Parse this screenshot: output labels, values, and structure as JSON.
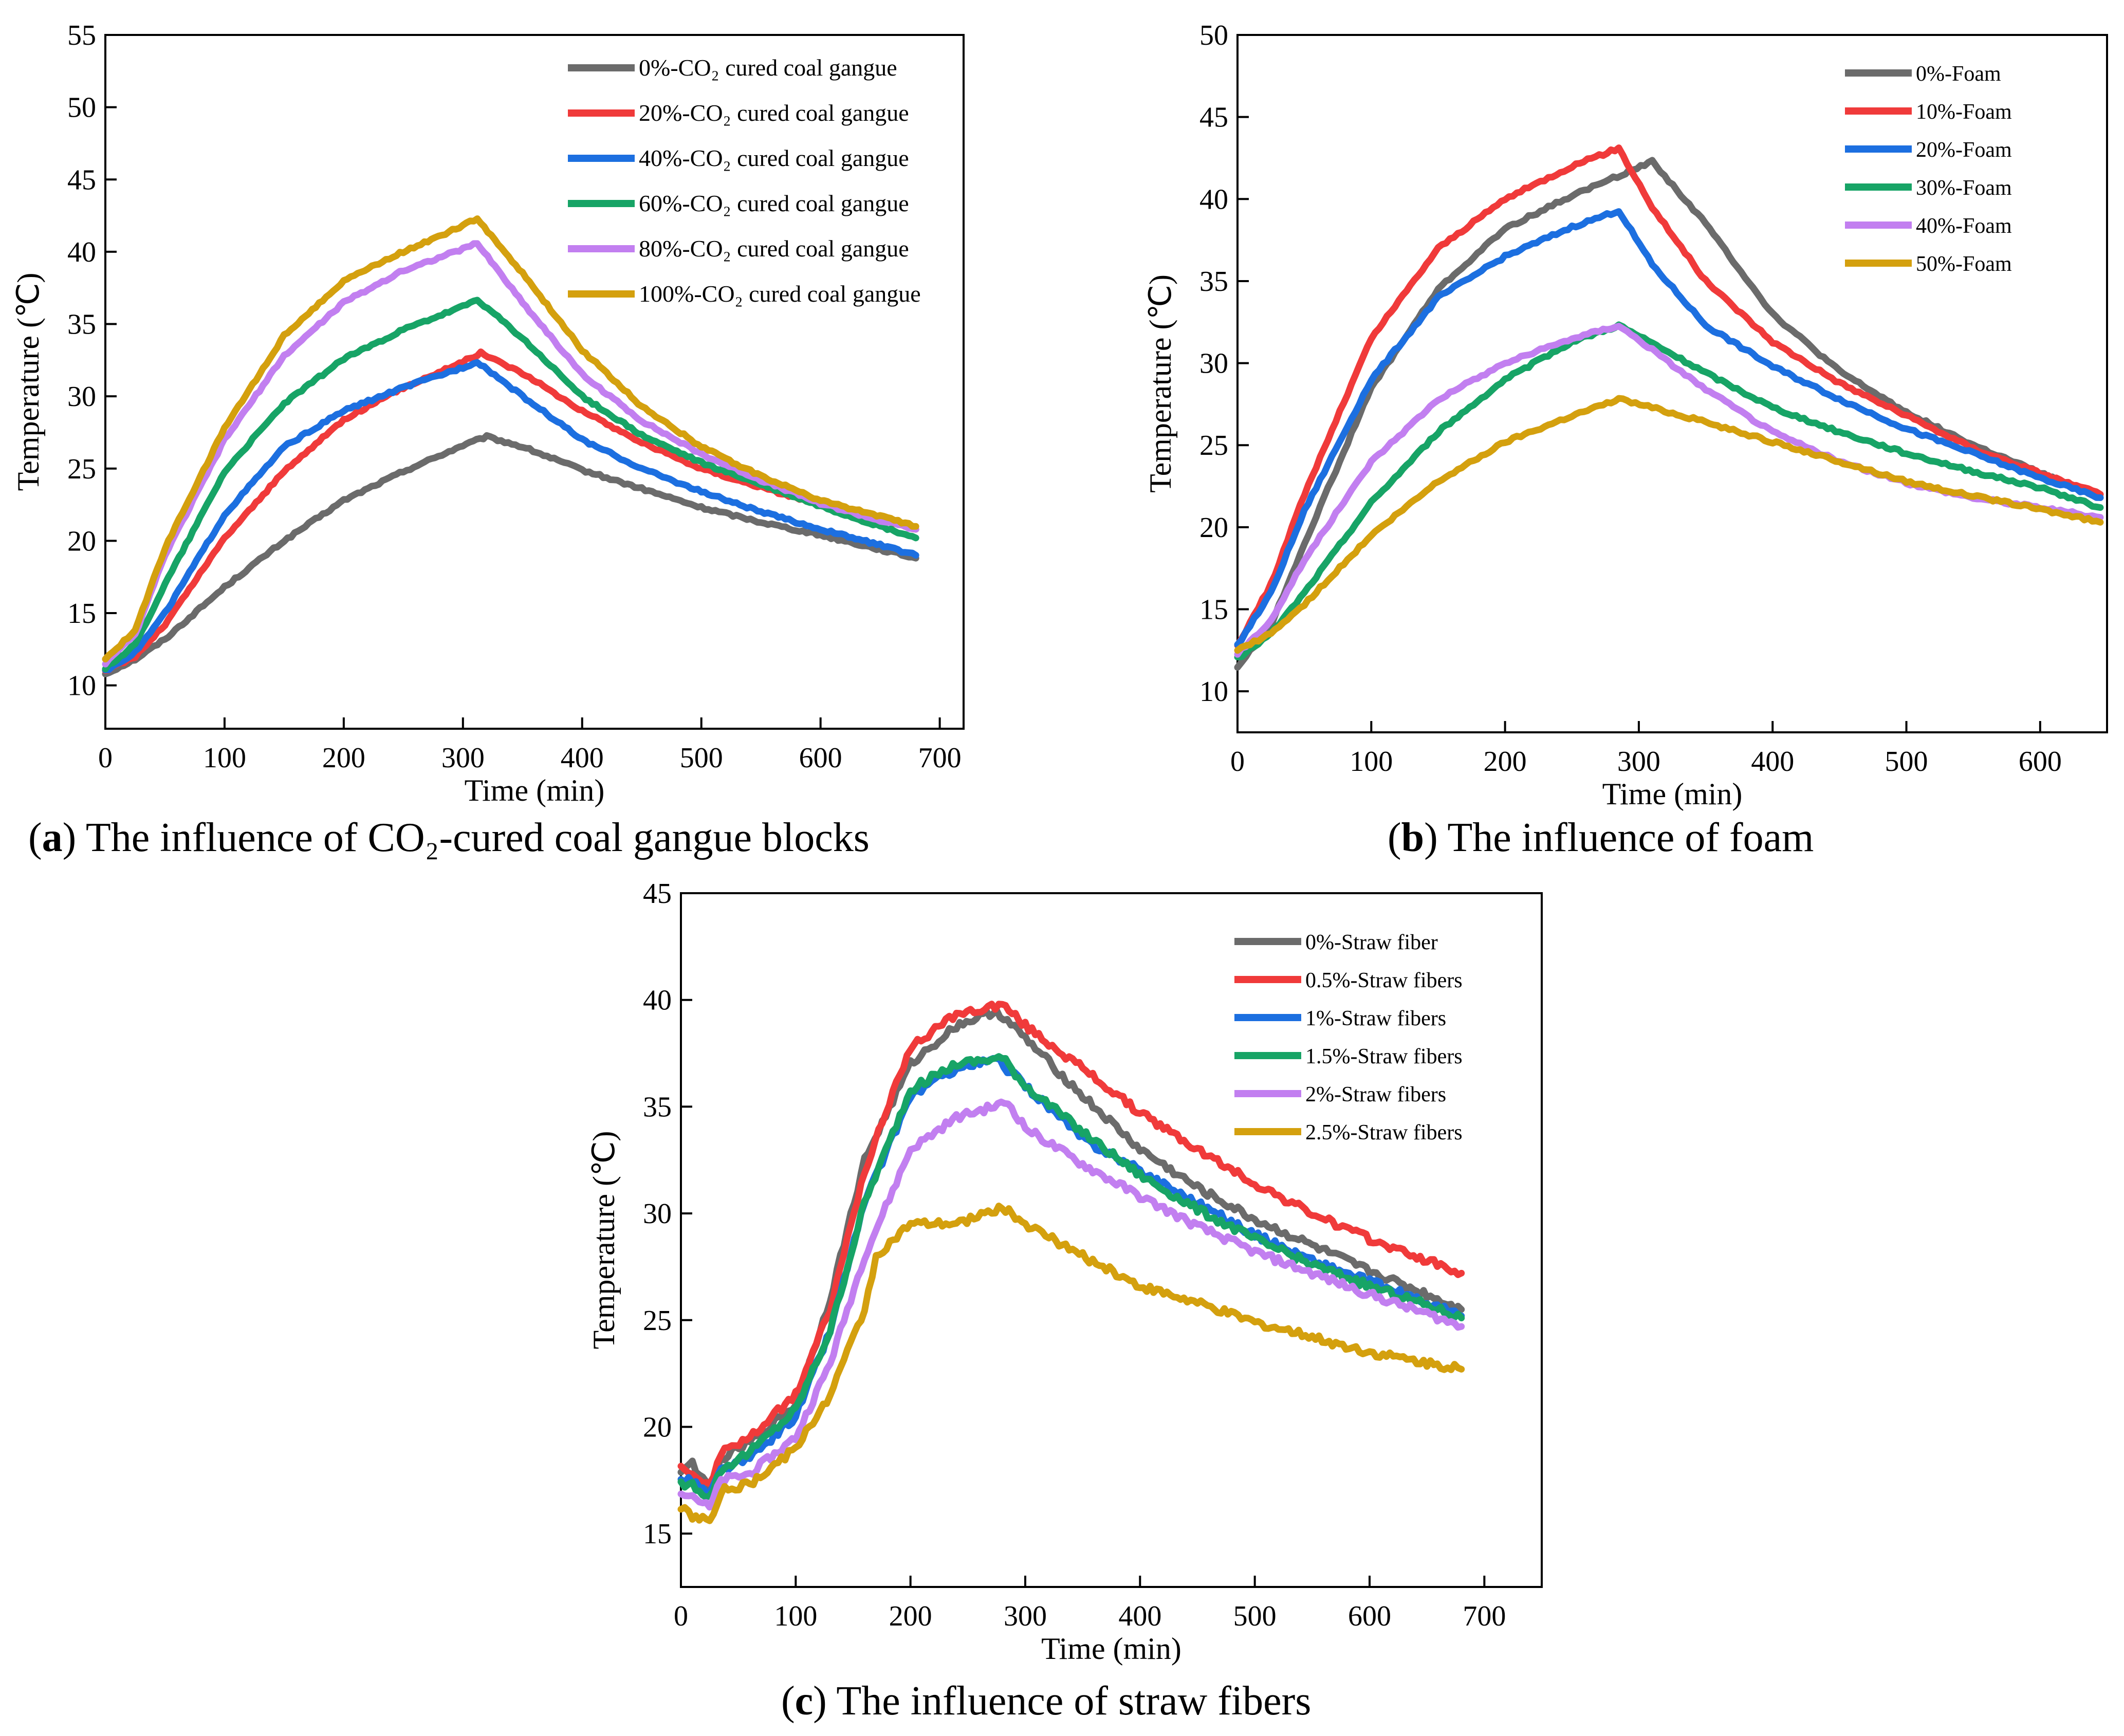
{
  "captions": {
    "a": {
      "letter": "a",
      "text": " The influence of CO₂-cured coal gangue blocks"
    },
    "b": {
      "letter": "b",
      "text": " The influence of foam"
    },
    "c": {
      "letter": "c",
      "text": " The influence of straw fibers"
    }
  },
  "chart_data": [
    {
      "id": "a",
      "type": "line",
      "xlabel": "Time (min)",
      "ylabel": "Temperature (℃)",
      "xlim": [
        0,
        720
      ],
      "ylim": [
        7,
        55
      ],
      "xticks": [
        0,
        100,
        200,
        300,
        400,
        500,
        600,
        700
      ],
      "yticks": [
        10,
        15,
        20,
        25,
        30,
        35,
        40,
        45,
        50,
        55
      ],
      "legend_position": "top-right",
      "series": [
        {
          "name": "0%-CO₂ cured coal gangue",
          "color": "#6b6b6b",
          "x": [
            0,
            25,
            50,
            100,
            150,
            200,
            250,
            300,
            320,
            350,
            400,
            450,
            500,
            550,
            600,
            650,
            680
          ],
          "y": [
            10.8,
            11.8,
            13.2,
            16.8,
            20.0,
            22.8,
            24.8,
            26.6,
            27.2,
            26.5,
            24.9,
            23.6,
            22.3,
            21.3,
            20.4,
            19.4,
            18.8
          ]
        },
        {
          "name": "20%-CO₂ cured coal gangue",
          "color": "#f03a3a",
          "x": [
            0,
            25,
            50,
            100,
            150,
            200,
            250,
            300,
            315,
            350,
            400,
            450,
            500,
            550,
            600,
            650,
            680
          ],
          "y": [
            11.0,
            12.0,
            14.2,
            20.2,
            24.8,
            28.4,
            30.6,
            32.4,
            33.0,
            31.6,
            29.0,
            26.8,
            25.0,
            23.7,
            22.5,
            21.5,
            20.8
          ]
        },
        {
          "name": "40%-CO₂ cured coal gangue",
          "color": "#1c6fe0",
          "x": [
            0,
            25,
            50,
            100,
            150,
            200,
            250,
            300,
            312,
            350,
            400,
            450,
            500,
            550,
            600,
            650,
            680
          ],
          "y": [
            11.0,
            12.3,
            15.0,
            21.8,
            26.5,
            29.0,
            30.6,
            32.0,
            32.4,
            30.0,
            27.0,
            25.0,
            23.4,
            22.0,
            20.8,
            19.7,
            19.0
          ]
        },
        {
          "name": "60%-CO₂ cured coal gangue",
          "color": "#17a466",
          "x": [
            0,
            25,
            50,
            100,
            150,
            200,
            250,
            300,
            312,
            350,
            400,
            450,
            500,
            550,
            600,
            650,
            680
          ],
          "y": [
            11.2,
            12.8,
            17.0,
            24.8,
            29.5,
            32.6,
            34.6,
            36.2,
            36.7,
            34.0,
            30.0,
            27.3,
            25.4,
            23.9,
            22.4,
            21.0,
            20.2
          ]
        },
        {
          "name": "80%-CO₂ cured coal gangue",
          "color": "#c27ff0",
          "x": [
            0,
            25,
            50,
            100,
            150,
            200,
            250,
            300,
            312,
            350,
            400,
            450,
            500,
            550,
            600,
            650,
            680
          ],
          "y": [
            11.5,
            13.5,
            19.0,
            27.0,
            32.8,
            36.5,
            38.7,
            40.2,
            40.6,
            36.5,
            31.5,
            28.3,
            26.0,
            24.2,
            22.6,
            21.4,
            20.8
          ]
        },
        {
          "name": "100%-CO₂ cured coal gangue",
          "color": "#d4a00e",
          "x": [
            0,
            25,
            50,
            100,
            150,
            200,
            250,
            300,
            312,
            350,
            400,
            450,
            500,
            550,
            600,
            650,
            680
          ],
          "y": [
            11.8,
            13.8,
            19.5,
            27.8,
            34.2,
            38.0,
            40.0,
            41.8,
            42.3,
            38.5,
            33.2,
            29.3,
            26.5,
            24.5,
            22.8,
            21.7,
            21.0
          ]
        }
      ]
    },
    {
      "id": "b",
      "type": "line",
      "xlabel": "Time (min)",
      "ylabel": "Temperature (℃)",
      "xlim": [
        0,
        650
      ],
      "ylim": [
        7.5,
        50
      ],
      "xticks": [
        0,
        100,
        200,
        300,
        400,
        500,
        600
      ],
      "yticks": [
        10,
        15,
        20,
        25,
        30,
        35,
        40,
        45,
        50
      ],
      "legend_position": "top-right",
      "series": [
        {
          "name": "0%-Foam",
          "color": "#6b6b6b",
          "x": [
            0,
            25,
            50,
            100,
            150,
            200,
            250,
            290,
            310,
            350,
            400,
            450,
            500,
            550,
            600,
            645
          ],
          "y": [
            11.5,
            14.0,
            19.0,
            28.5,
            34.5,
            38.2,
            40.2,
            41.6,
            42.3,
            38.5,
            33.0,
            29.5,
            27.0,
            25.0,
            23.3,
            21.8
          ]
        },
        {
          "name": "10%-Foam",
          "color": "#f03a3a",
          "x": [
            0,
            25,
            50,
            100,
            150,
            200,
            250,
            285,
            310,
            350,
            400,
            450,
            500,
            550,
            600,
            645
          ],
          "y": [
            12.8,
            16.5,
            22.0,
            31.5,
            37.0,
            40.0,
            42.0,
            43.1,
            39.5,
            35.0,
            31.3,
            28.8,
            26.8,
            24.8,
            23.3,
            22.0
          ]
        },
        {
          "name": "20%-Foam",
          "color": "#1c6fe0",
          "x": [
            0,
            25,
            50,
            100,
            150,
            200,
            250,
            285,
            310,
            350,
            400,
            450,
            500,
            550,
            600,
            645
          ],
          "y": [
            12.8,
            16.0,
            21.0,
            29.0,
            34.0,
            36.5,
            38.3,
            39.3,
            36.0,
            32.3,
            29.8,
            27.8,
            26.0,
            24.5,
            23.0,
            21.8
          ]
        },
        {
          "name": "30%-Foam",
          "color": "#17a466",
          "x": [
            0,
            25,
            50,
            100,
            150,
            200,
            250,
            285,
            310,
            350,
            400,
            450,
            500,
            550,
            600,
            645
          ],
          "y": [
            12.0,
            13.5,
            16.0,
            21.5,
            25.8,
            29.0,
            31.3,
            32.3,
            31.2,
            29.4,
            27.3,
            25.8,
            24.5,
            23.4,
            22.4,
            21.2
          ]
        },
        {
          "name": "40%-Foam",
          "color": "#c27ff0",
          "x": [
            0,
            25,
            50,
            100,
            150,
            200,
            250,
            285,
            310,
            350,
            400,
            450,
            500,
            550,
            600,
            645
          ],
          "y": [
            12.3,
            14.3,
            18.0,
            24.0,
            27.8,
            30.0,
            31.5,
            32.3,
            30.8,
            28.4,
            25.8,
            24.0,
            22.7,
            21.8,
            21.2,
            20.6
          ]
        },
        {
          "name": "50%-Foam",
          "color": "#d4a00e",
          "x": [
            0,
            25,
            50,
            100,
            150,
            200,
            250,
            285,
            310,
            350,
            400,
            450,
            500,
            550,
            600,
            645
          ],
          "y": [
            12.5,
            13.5,
            15.3,
            19.5,
            22.8,
            25.2,
            26.8,
            27.8,
            27.3,
            26.4,
            25.2,
            24.0,
            22.8,
            21.9,
            21.1,
            20.3
          ]
        }
      ]
    },
    {
      "id": "c",
      "type": "line",
      "xlabel": "Time (min)",
      "ylabel": "Temperature (℃)",
      "xlim": [
        0,
        750
      ],
      "ylim": [
        12.5,
        45
      ],
      "xticks": [
        0,
        100,
        200,
        300,
        400,
        500,
        600,
        700
      ],
      "yticks": [
        15,
        20,
        25,
        30,
        35,
        40,
        45
      ],
      "legend_position": "top-right",
      "series": [
        {
          "name": "0%-Straw fiber",
          "color": "#6b6b6b",
          "x": [
            0,
            10,
            25,
            35,
            60,
            100,
            130,
            160,
            200,
            240,
            275,
            300,
            350,
            400,
            450,
            500,
            550,
            600,
            650,
            680
          ],
          "y": [
            18.0,
            18.3,
            17.0,
            18.5,
            19.3,
            21.0,
            26.0,
            32.5,
            37.0,
            38.8,
            39.5,
            38.2,
            35.5,
            33.0,
            31.2,
            29.7,
            28.5,
            27.3,
            26.2,
            25.5
          ]
        },
        {
          "name": "0.5%-Straw fibers",
          "color": "#f03a3a",
          "x": [
            0,
            10,
            25,
            35,
            60,
            100,
            130,
            160,
            200,
            240,
            280,
            300,
            350,
            400,
            450,
            500,
            550,
            600,
            650,
            680
          ],
          "y": [
            18.2,
            17.8,
            17.2,
            18.8,
            19.5,
            21.5,
            25.5,
            32.0,
            37.8,
            39.3,
            39.8,
            38.8,
            36.8,
            34.7,
            33.0,
            31.4,
            30.0,
            28.8,
            27.8,
            27.2
          ]
        },
        {
          "name": "1%-Straw fibers",
          "color": "#1c6fe0",
          "x": [
            0,
            10,
            25,
            35,
            60,
            100,
            130,
            160,
            200,
            240,
            275,
            300,
            350,
            400,
            450,
            500,
            550,
            600,
            650,
            680
          ],
          "y": [
            17.5,
            17.5,
            16.8,
            18.0,
            18.5,
            20.5,
            24.5,
            30.5,
            35.5,
            36.8,
            37.2,
            36.0,
            33.5,
            32.0,
            30.5,
            29.0,
            27.8,
            26.8,
            25.8,
            25.2
          ]
        },
        {
          "name": "1.5%-Straw fibers",
          "color": "#17a466",
          "x": [
            0,
            10,
            25,
            35,
            60,
            100,
            130,
            160,
            200,
            240,
            280,
            300,
            350,
            400,
            450,
            500,
            550,
            600,
            650,
            680
          ],
          "y": [
            17.3,
            17.3,
            16.7,
            18.0,
            18.8,
            20.8,
            24.5,
            30.5,
            35.8,
            37.0,
            37.3,
            36.0,
            33.8,
            31.8,
            30.2,
            28.8,
            27.6,
            26.6,
            25.7,
            25.1
          ]
        },
        {
          "name": "2%-Straw fibers",
          "color": "#c27ff0",
          "x": [
            0,
            10,
            25,
            35,
            60,
            100,
            130,
            160,
            200,
            240,
            285,
            300,
            350,
            400,
            450,
            500,
            550,
            600,
            650,
            680
          ],
          "y": [
            17.0,
            16.8,
            16.2,
            17.5,
            17.8,
            19.5,
            23.0,
            28.0,
            33.0,
            34.5,
            35.2,
            34.0,
            32.3,
            30.8,
            29.4,
            28.2,
            27.2,
            26.2,
            25.3,
            24.7
          ]
        },
        {
          "name": "2.5%-Straw fibers",
          "color": "#d4a00e",
          "x": [
            0,
            10,
            25,
            35,
            60,
            100,
            130,
            160,
            170,
            200,
            240,
            280,
            300,
            350,
            400,
            450,
            500,
            550,
            600,
            650,
            680
          ],
          "y": [
            16.2,
            15.8,
            15.6,
            17.0,
            17.3,
            19.0,
            21.5,
            25.5,
            28.0,
            29.5,
            29.5,
            30.3,
            29.5,
            28.0,
            26.6,
            25.8,
            24.9,
            24.2,
            23.5,
            23.0,
            22.7
          ]
        }
      ]
    }
  ]
}
